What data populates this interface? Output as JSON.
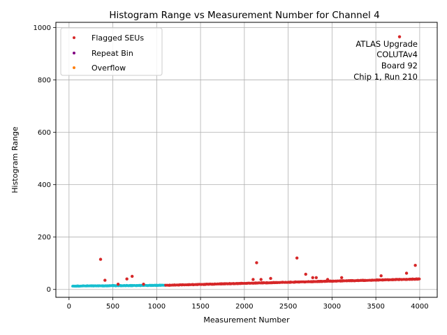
{
  "chart_data": {
    "type": "scatter",
    "title": "Histogram Range vs Measurement Number for Channel 4",
    "xlabel": "Measurement Number",
    "ylabel": "Histogram Range",
    "xlim": [
      -150,
      4200
    ],
    "ylim": [
      -30,
      1020
    ],
    "xticks": [
      0,
      500,
      1000,
      1500,
      2000,
      2500,
      3000,
      3500,
      4000
    ],
    "yticks": [
      0,
      200,
      400,
      600,
      800,
      1000
    ],
    "grid": true,
    "legend_position": "upper-left",
    "annotation": [
      "ATLAS Upgrade",
      "COLUTAv4",
      "Board 92",
      "Chip 1, Run 210"
    ],
    "colors": {
      "normal": "#17becf",
      "flagged": "#d62728",
      "repeat": "#800080",
      "overflow": "#ff7f0e",
      "grid": "#b0b0b0"
    },
    "series": [
      {
        "name": "Flagged SEUs",
        "color": "#d62728",
        "points": [
          [
            360,
            115
          ],
          [
            410,
            35
          ],
          [
            560,
            20
          ],
          [
            660,
            40
          ],
          [
            720,
            50
          ],
          [
            850,
            20
          ],
          [
            2100,
            38
          ],
          [
            2140,
            102
          ],
          [
            2190,
            38
          ],
          [
            2300,
            42
          ],
          [
            2600,
            120
          ],
          [
            2700,
            58
          ],
          [
            2780,
            45
          ],
          [
            2820,
            45
          ],
          [
            2950,
            38
          ],
          [
            3110,
            45
          ],
          [
            3560,
            52
          ],
          [
            3770,
            965
          ],
          [
            3850,
            62
          ],
          [
            3950,
            92
          ],
          [
            3990,
            40
          ]
        ]
      },
      {
        "name": "Repeat Bin",
        "color": "#800080",
        "points": []
      },
      {
        "name": "Overflow",
        "color": "#ff7f0e",
        "points": []
      }
    ],
    "baseline_normal": {
      "x_start": 40,
      "x_end": 1100,
      "step": 6,
      "y_start": 13,
      "y_end": 16
    },
    "baseline_flagged": {
      "x_start": 1100,
      "x_end": 4000,
      "step": 6,
      "y_start": 16,
      "y_end": 40
    }
  }
}
